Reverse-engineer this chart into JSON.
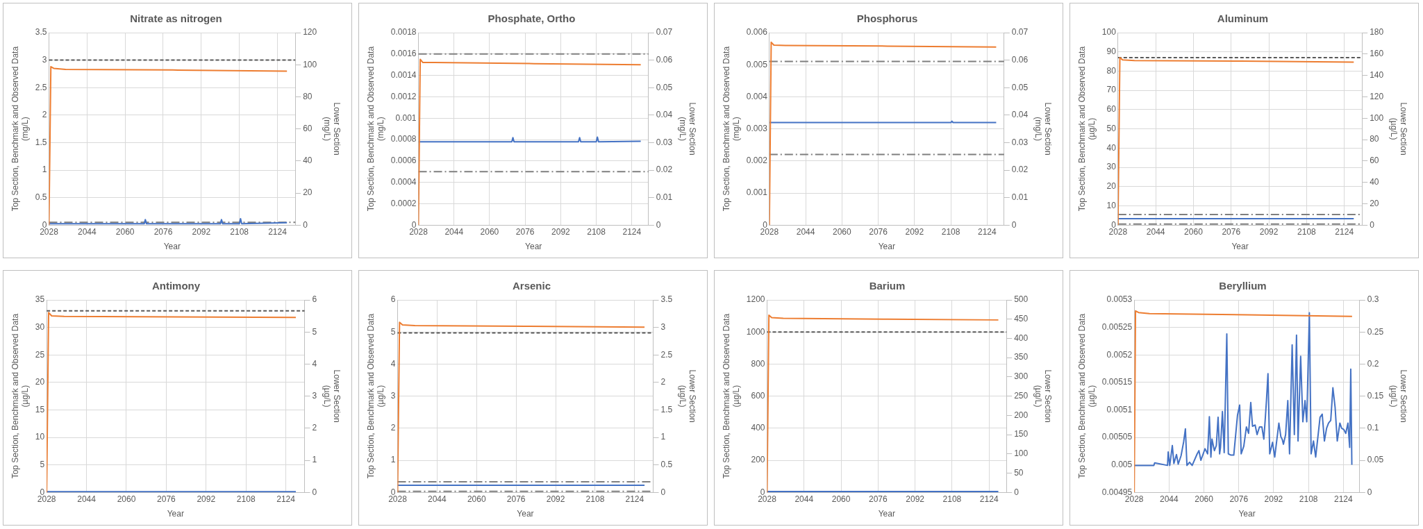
{
  "chart_data": [
    {
      "type": "line",
      "title": "Nitrate as nitrogen",
      "xlabel": "Year",
      "ylabel": "Top Section, Benchmark and Observed Data (mg/L)",
      "y2label": "Lower Section (mg/L)",
      "xlim": [
        2028,
        2131.5
      ],
      "xticks": [
        2028,
        2044,
        2060,
        2076,
        2092,
        2108,
        2124
      ],
      "ylim": [
        0,
        3.5
      ],
      "yticks": [
        0,
        0.5,
        1,
        1.5,
        2,
        2.5,
        3,
        3.5
      ],
      "y2lim": [
        0,
        120
      ],
      "y2ticks": [
        0,
        20,
        40,
        60,
        80,
        100,
        120
      ],
      "grid": true,
      "legend": false,
      "marker": "none",
      "series": [
        {
          "color": "#ed7d31",
          "x": [
            2028,
            2028.8,
            2030,
            2035,
            2080,
            2128
          ],
          "values": [
            0,
            2.88,
            2.85,
            2.83,
            2.82,
            2.8
          ]
        },
        {
          "color": "#4472c4",
          "axis": "y2",
          "x": [
            2028,
            2050,
            2068,
            2068.5,
            2069,
            2100,
            2100.5,
            2101,
            2108,
            2108.5,
            2109,
            2128
          ],
          "values": [
            0.8,
            0.8,
            0.8,
            3.4,
            0.8,
            0.8,
            3.4,
            0.8,
            0.8,
            4,
            0.8,
            1.5
          ]
        }
      ],
      "ref_lines": [
        {
          "axis": "y",
          "value": 3,
          "color": "#595959",
          "line_style": "dashed"
        },
        {
          "axis": "y",
          "value": 0.05,
          "color": "#7f7f7f",
          "line_style": "dashdot"
        }
      ]
    },
    {
      "type": "line",
      "title": "Phosphate, Ortho",
      "xlabel": "Year",
      "ylabel": "Top Section, Benchmark and Observed Data (mg/L)",
      "y2label": "Lower Section (mg/L)",
      "xlim": [
        2028,
        2131.5
      ],
      "xticks": [
        2028,
        2044,
        2060,
        2076,
        2092,
        2108,
        2124
      ],
      "ylim": [
        0,
        0.0018
      ],
      "yticks": [
        0,
        0.0002,
        0.0004,
        0.0006,
        0.0008,
        0.001,
        0.0012,
        0.0014,
        0.0016,
        0.0018
      ],
      "y2lim": [
        0,
        0.07
      ],
      "y2ticks": [
        0,
        0.01,
        0.02,
        0.03,
        0.04,
        0.05,
        0.06,
        0.07
      ],
      "grid": true,
      "legend": false,
      "marker": "none",
      "series": [
        {
          "color": "#ed7d31",
          "x": [
            2028,
            2028.8,
            2030,
            2035,
            2080,
            2128
          ],
          "values": [
            0,
            0.00155,
            0.00152,
            0.00152,
            0.00151,
            0.0015
          ]
        },
        {
          "color": "#4472c4",
          "axis": "y2",
          "x": [
            2028,
            2070,
            2070.5,
            2071,
            2100,
            2100.5,
            2101,
            2108,
            2108.5,
            2109,
            2128
          ],
          "values": [
            0.0303,
            0.0303,
            0.0318,
            0.0303,
            0.0303,
            0.0318,
            0.0303,
            0.0303,
            0.032,
            0.0303,
            0.0305
          ]
        }
      ],
      "ref_lines": [
        {
          "axis": "y",
          "value": 0.0016,
          "color": "#7f7f7f",
          "line_style": "dashdot"
        },
        {
          "axis": "y",
          "value": 0.0005,
          "color": "#7f7f7f",
          "line_style": "dashdot"
        }
      ]
    },
    {
      "type": "line",
      "title": "Phosphorus",
      "xlabel": "Year",
      "ylabel": "Top Section, Benchmark and Observed Data (mg/L)",
      "y2label": "Lower Section (mg/L)",
      "xlim": [
        2028,
        2131.5
      ],
      "xticks": [
        2028,
        2044,
        2060,
        2076,
        2092,
        2108,
        2124
      ],
      "ylim": [
        0,
        0.006
      ],
      "yticks": [
        0,
        0.001,
        0.002,
        0.003,
        0.004,
        0.005,
        0.006
      ],
      "y2lim": [
        0,
        0.07
      ],
      "y2ticks": [
        0,
        0.01,
        0.02,
        0.03,
        0.04,
        0.05,
        0.06,
        0.07
      ],
      "grid": true,
      "legend": false,
      "marker": "none",
      "series": [
        {
          "color": "#ed7d31",
          "x": [
            2028,
            2028.8,
            2030,
            2035,
            2080,
            2128
          ],
          "values": [
            0,
            0.0057,
            0.00561,
            0.0056,
            0.00558,
            0.00555
          ]
        },
        {
          "color": "#4472c4",
          "axis": "y2",
          "x": [
            2028,
            2108,
            2108.5,
            2109,
            2128
          ],
          "values": [
            0.0373,
            0.0373,
            0.0378,
            0.0373,
            0.0373
          ]
        }
      ],
      "ref_lines": [
        {
          "axis": "y",
          "value": 0.0051,
          "color": "#7f7f7f",
          "line_style": "dashdot"
        },
        {
          "axis": "y",
          "value": 0.0022,
          "color": "#7f7f7f",
          "line_style": "dashdot"
        }
      ]
    },
    {
      "type": "line",
      "title": "Aluminum",
      "xlabel": "Year",
      "ylabel": "Top Section, Benchmark and Observed Data (µg/L)",
      "y2label": "Lower Section (µg/L)",
      "xlim": [
        2028,
        2131.5
      ],
      "xticks": [
        2028,
        2044,
        2060,
        2076,
        2092,
        2108,
        2124
      ],
      "ylim": [
        0,
        100
      ],
      "yticks": [
        0,
        10,
        20,
        30,
        40,
        50,
        60,
        70,
        80,
        90,
        100
      ],
      "y2lim": [
        0,
        180
      ],
      "y2ticks": [
        0,
        20,
        40,
        60,
        80,
        100,
        120,
        140,
        160,
        180
      ],
      "grid": true,
      "legend": false,
      "marker": "none",
      "series": [
        {
          "color": "#ed7d31",
          "x": [
            2028,
            2028.8,
            2030,
            2035,
            2080,
            2128
          ],
          "values": [
            0,
            87,
            85.8,
            85.5,
            85.2,
            84.7
          ]
        },
        {
          "color": "#4472c4",
          "axis": "y2",
          "x": [
            2028,
            2128
          ],
          "values": [
            6,
            6
          ]
        }
      ],
      "ref_lines": [
        {
          "axis": "y",
          "value": 87,
          "color": "#595959",
          "line_style": "dashed"
        },
        {
          "axis": "y",
          "value": 5.5,
          "color": "#7f7f7f",
          "line_style": "dashdot"
        },
        {
          "axis": "y",
          "value": 0.5,
          "color": "#7f7f7f",
          "line_style": "dashdot"
        }
      ]
    },
    {
      "type": "line",
      "title": "Antimony",
      "xlabel": "Year",
      "ylabel": "Top Section, Benchmark and Observed Data (µg/L)",
      "y2label": "Lower Section (µg/L)",
      "xlim": [
        2028,
        2131.5
      ],
      "xticks": [
        2028,
        2044,
        2060,
        2076,
        2092,
        2108,
        2124
      ],
      "ylim": [
        0,
        35
      ],
      "yticks": [
        0,
        5,
        10,
        15,
        20,
        25,
        30,
        35
      ],
      "y2lim": [
        0,
        6
      ],
      "y2ticks": [
        0,
        1,
        2,
        3,
        4,
        5,
        6
      ],
      "grid": true,
      "legend": false,
      "marker": "none",
      "series": [
        {
          "color": "#ed7d31",
          "x": [
            2028,
            2028.8,
            2030,
            2035,
            2080,
            2128
          ],
          "values": [
            0,
            32.7,
            32.1,
            32,
            31.9,
            31.8
          ]
        },
        {
          "color": "#4472c4",
          "axis": "y2",
          "x": [
            2028,
            2128
          ],
          "values": [
            0.02,
            0.02
          ]
        }
      ],
      "ref_lines": [
        {
          "axis": "y",
          "value": 33,
          "color": "#595959",
          "line_style": "dashed"
        }
      ]
    },
    {
      "type": "line",
      "title": "Arsenic",
      "xlabel": "Year",
      "ylabel": "Top Section, Benchmark and Observed Data (µg/L)",
      "y2label": "Lower Section (µg/L)",
      "xlim": [
        2028,
        2131.5
      ],
      "xticks": [
        2028,
        2044,
        2060,
        2076,
        2092,
        2108,
        2124
      ],
      "ylim": [
        0,
        6
      ],
      "yticks": [
        0,
        1,
        2,
        3,
        4,
        5,
        6
      ],
      "y2lim": [
        0,
        3.5
      ],
      "y2ticks": [
        0,
        0.5,
        1,
        1.5,
        2,
        2.5,
        3,
        3.5
      ],
      "grid": true,
      "legend": false,
      "marker": "none",
      "series": [
        {
          "color": "#ed7d31",
          "x": [
            2028,
            2028.8,
            2030,
            2035,
            2080,
            2128
          ],
          "values": [
            0,
            5.3,
            5.22,
            5.2,
            5.18,
            5.15
          ]
        },
        {
          "color": "#4472c4",
          "axis": "y2",
          "x": [
            2028,
            2128
          ],
          "values": [
            0.13,
            0.13
          ]
        }
      ],
      "ref_lines": [
        {
          "axis": "y",
          "value": 4.97,
          "color": "#595959",
          "line_style": "dashed"
        },
        {
          "axis": "y",
          "value": 0.33,
          "color": "#7f7f7f",
          "line_style": "dashdot"
        },
        {
          "axis": "y",
          "value": 0.03,
          "color": "#7f7f7f",
          "line_style": "dashdot"
        }
      ]
    },
    {
      "type": "line",
      "title": "Barium",
      "xlabel": "Year",
      "ylabel": "Top Section, Benchmark and Observed Data (µg/L)",
      "y2label": "Lower Section (µg/L)",
      "xlim": [
        2028,
        2131.5
      ],
      "xticks": [
        2028,
        2044,
        2060,
        2076,
        2092,
        2108,
        2124
      ],
      "ylim": [
        0,
        1200
      ],
      "yticks": [
        0,
        200,
        400,
        600,
        800,
        1000,
        1200
      ],
      "y2lim": [
        0,
        500
      ],
      "y2ticks": [
        0,
        50,
        100,
        150,
        200,
        250,
        300,
        350,
        400,
        450,
        500
      ],
      "grid": true,
      "legend": false,
      "marker": "none",
      "series": [
        {
          "color": "#ed7d31",
          "x": [
            2028,
            2028.8,
            2030,
            2035,
            2080,
            2128
          ],
          "values": [
            0,
            1105,
            1090,
            1085,
            1080,
            1075
          ]
        },
        {
          "color": "#4472c4",
          "axis": "y2",
          "x": [
            2028,
            2128
          ],
          "values": [
            2,
            2
          ]
        }
      ],
      "ref_lines": [
        {
          "axis": "y",
          "value": 1000,
          "color": "#595959",
          "line_style": "dashed"
        }
      ]
    },
    {
      "type": "line",
      "title": "Beryllium",
      "xlabel": "Year",
      "ylabel": "Top Section, Benchmark and Observed Data (µg/L)",
      "y2label": "Lower Section (µg/L)",
      "xlim": [
        2028,
        2131.5
      ],
      "xticks": [
        2028,
        2044,
        2060,
        2076,
        2092,
        2108,
        2124
      ],
      "ylim": [
        0.00495,
        0.0053
      ],
      "yticks": [
        0.00495,
        0.005,
        0.00505,
        0.0051,
        0.00515,
        0.0052,
        0.00525,
        0.0053
      ],
      "y2lim": [
        0,
        0.3
      ],
      "y2ticks": [
        0,
        0.05,
        0.1,
        0.15,
        0.2,
        0.25,
        0.3
      ],
      "grid": true,
      "legend": false,
      "marker": "none",
      "series": [
        {
          "color": "#ed7d31",
          "x": [
            2028,
            2028.6,
            2030,
            2035,
            2080,
            2128
          ],
          "values": [
            0.00495,
            0.00528,
            0.005277,
            0.005275,
            0.005273,
            0.00527
          ]
        },
        {
          "color": "#4472c4",
          "axis": "y2",
          "x": [
            2028,
            2037,
            2037.4,
            2043.3,
            2043.6,
            2044.3,
            2045.5,
            2046.2,
            2047.4,
            2048.2,
            2049.5,
            2050.7,
            2051.5,
            2052.2,
            2053.4,
            2054.6,
            2056.9,
            2057.7,
            2058.6,
            2060.5,
            2061.7,
            2062.5,
            2063.2,
            2063.7,
            2064.8,
            2065.7,
            2066.5,
            2067.2,
            2067.6,
            2068.5,
            2069.3,
            2070.5,
            2071.2,
            2072.4,
            2073.7,
            2075.4,
            2076.4,
            2077.1,
            2078.3,
            2079.5,
            2080.5,
            2081.5,
            2082.3,
            2083.5,
            2084.4,
            2085.5,
            2086.6,
            2087.5,
            2088.2,
            2088.7,
            2089.4,
            2090.2,
            2091.5,
            2092.5,
            2094.4,
            2095.3,
            2096,
            2096.5,
            2097.5,
            2098.5,
            2099.3,
            2100.5,
            2101.5,
            2102.5,
            2103.2,
            2104.4,
            2105.4,
            2106.4,
            2107.2,
            2108.4,
            2109.2,
            2110.3,
            2111.3,
            2113.3,
            2114.3,
            2115.3,
            2116.3,
            2117.2,
            2118.2,
            2119.2,
            2120.2,
            2121.2,
            2122.4,
            2123.2,
            2124.2,
            2125.1,
            2126.1,
            2126.9,
            2127.4,
            2127.9
          ],
          "values": [
            0.042,
            0.042,
            0.046,
            0.042,
            0.063,
            0.042,
            0.073,
            0.045,
            0.059,
            0.044,
            0.057,
            0.079,
            0.099,
            0.042,
            0.047,
            0.042,
            0.06,
            0.065,
            0.05,
            0.068,
            0.06,
            0.118,
            0.055,
            0.083,
            0.065,
            0.073,
            0.117,
            0.06,
            0.07,
            0.126,
            0.062,
            0.247,
            0.06,
            0.058,
            0.058,
            0.12,
            0.136,
            0.06,
            0.072,
            0.102,
            0.092,
            0.14,
            0.103,
            0.105,
            0.09,
            0.102,
            0.102,
            0.083,
            0.117,
            0.143,
            0.185,
            0.06,
            0.078,
            0.055,
            0.108,
            0.087,
            0.082,
            0.075,
            0.09,
            0.143,
            0.06,
            0.23,
            0.09,
            0.245,
            0.08,
            0.212,
            0.11,
            0.143,
            0.11,
            0.28,
            0.06,
            0.08,
            0.055,
            0.117,
            0.122,
            0.08,
            0.1,
            0.108,
            0.112,
            0.163,
            0.133,
            0.08,
            0.108,
            0.1,
            0.098,
            0.092,
            0.108,
            0.07,
            0.192,
            0.043
          ]
        }
      ]
    }
  ]
}
